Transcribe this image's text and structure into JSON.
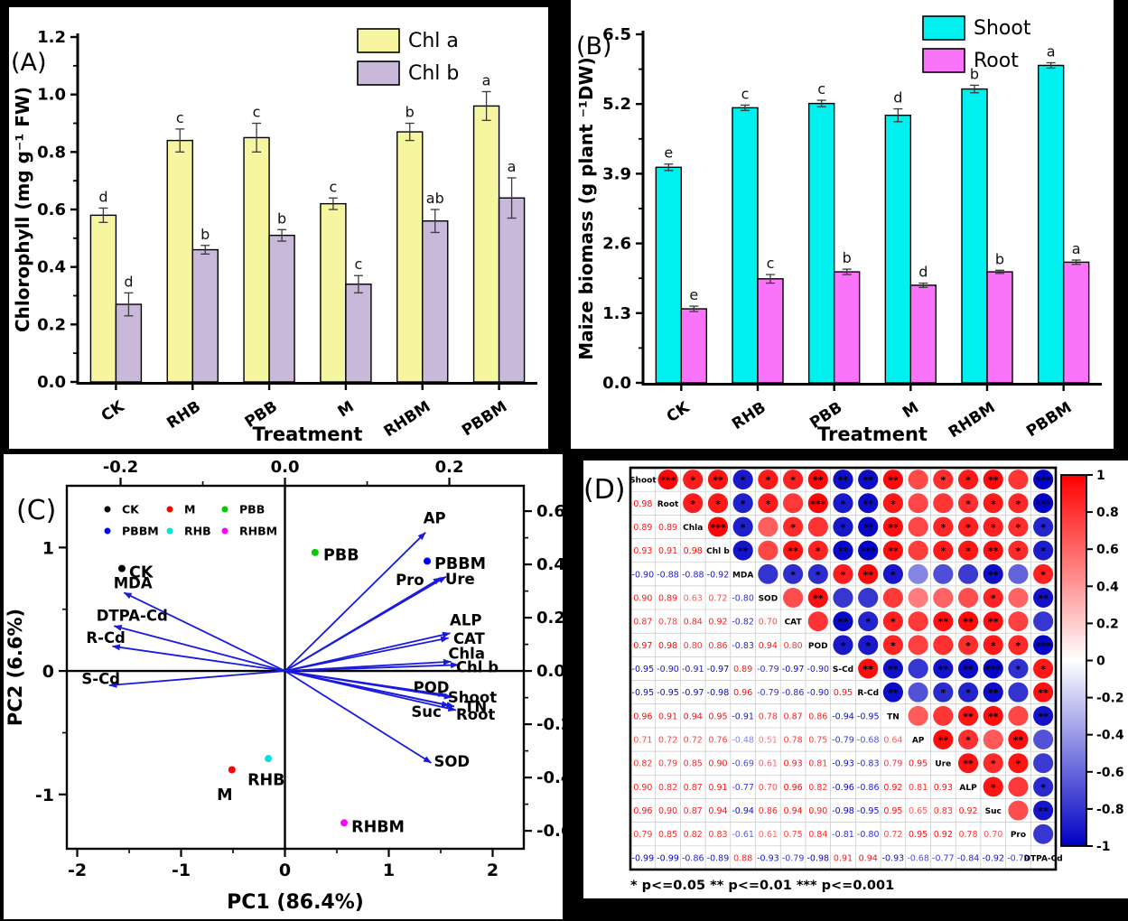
{
  "chart_data": [
    {
      "id": "panel_a",
      "type": "bar",
      "panel_label": "(A)",
      "title": "",
      "xlabel": "Treatment",
      "ylabel": "Chlorophyll (mg g⁻¹ FW)",
      "categories": [
        "CK",
        "RHB",
        "PBB",
        "M",
        "RHBM",
        "PBBM"
      ],
      "y_ticks": [
        "0.0",
        "0.2",
        "0.4",
        "0.6",
        "0.8",
        "1.0",
        "1.2"
      ],
      "ylim": [
        0,
        1.2
      ],
      "legend_position": "top-right",
      "series": [
        {
          "name": "Chl a",
          "color": "#F6F6A0",
          "values": [
            0.58,
            0.84,
            0.85,
            0.62,
            0.87,
            0.96
          ],
          "errors": [
            0.025,
            0.04,
            0.05,
            0.02,
            0.03,
            0.05
          ],
          "letters": [
            "d",
            "c",
            "c",
            "c",
            "b",
            "a"
          ]
        },
        {
          "name": "Chl b",
          "color": "#C9B8D9",
          "values": [
            0.27,
            0.46,
            0.51,
            0.34,
            0.56,
            0.64
          ],
          "errors": [
            0.04,
            0.015,
            0.02,
            0.03,
            0.04,
            0.07
          ],
          "letters": [
            "d",
            "b",
            "b",
            "c",
            "ab",
            "a"
          ]
        }
      ]
    },
    {
      "id": "panel_b",
      "type": "bar",
      "panel_label": "(B)",
      "title": "",
      "xlabel": "Treatment",
      "ylabel": "Maize biomass (g plant ⁻¹DW)",
      "categories": [
        "CK",
        "RHB",
        "PBB",
        "M",
        "RHBM",
        "PBBM"
      ],
      "y_ticks": [
        "0.0",
        "1.3",
        "2.6",
        "3.9",
        "5.2",
        "6.5"
      ],
      "ylim": [
        0,
        6.5
      ],
      "legend_position": "top-right",
      "series": [
        {
          "name": "Shoot",
          "color": "#00EFEF",
          "values": [
            4.02,
            5.13,
            5.21,
            4.99,
            5.48,
            5.92
          ],
          "errors": [
            0.06,
            0.05,
            0.06,
            0.12,
            0.07,
            0.05
          ],
          "letters": [
            "e",
            "c",
            "c",
            "d",
            "b",
            "a"
          ]
        },
        {
          "name": "Root",
          "color": "#FA74FA",
          "values": [
            1.38,
            1.94,
            2.07,
            1.82,
            2.07,
            2.25
          ],
          "errors": [
            0.05,
            0.08,
            0.05,
            0.04,
            0.03,
            0.04
          ],
          "letters": [
            "e",
            "c",
            "b",
            "d",
            "b",
            "a"
          ]
        }
      ]
    },
    {
      "id": "panel_c",
      "type": "scatter",
      "panel_label": "(C)",
      "xlabel": "PC1 (86.4%)",
      "ylabel": "PC2 (6.6%)",
      "x_range": [
        -2.1,
        2.3
      ],
      "y_range": [
        -1.44,
        1.5
      ],
      "x_ticks": [
        -2,
        -1,
        0,
        1,
        2
      ],
      "y_ticks": [
        -1,
        0,
        1
      ],
      "loading_x_range": [
        -0.2654,
        0.2906
      ],
      "loading_y_range": [
        -0.6674,
        0.6952
      ],
      "top_ticks": [
        "-0.2",
        "0.0",
        "0.2"
      ],
      "right_ticks": [
        "0.6",
        "0.4",
        "0.2",
        "0.0",
        "-0.2",
        "-0.4",
        "-0.6"
      ],
      "arrow_color": "#1A1ADF",
      "groups": [
        {
          "name": "CK",
          "color": "#000000",
          "x": -1.57,
          "y": 0.83,
          "lx": -1.5,
          "ly": 0.8,
          "anchor": "start"
        },
        {
          "name": "M",
          "color": "#FF0000",
          "x": -0.51,
          "y": -0.8,
          "lx": -0.58,
          "ly": -1.0,
          "anchor": "middle"
        },
        {
          "name": "PBB",
          "color": "#00CC00",
          "x": 0.29,
          "y": 0.96,
          "lx": 0.37,
          "ly": 0.94,
          "anchor": "start"
        },
        {
          "name": "PBBM",
          "color": "#0000FF",
          "x": 1.37,
          "y": 0.89,
          "lx": 1.44,
          "ly": 0.87,
          "anchor": "start"
        },
        {
          "name": "RHB",
          "color": "#00E0E0",
          "x": -0.16,
          "y": -0.71,
          "lx": -0.18,
          "ly": -0.88,
          "anchor": "middle"
        },
        {
          "name": "RHBM",
          "color": "#FF00FF",
          "x": 0.57,
          "y": -1.23,
          "lx": 0.64,
          "ly": -1.26,
          "anchor": "start"
        }
      ],
      "legend_rows": [
        [
          "CK",
          "M",
          "PBB"
        ],
        [
          "PBBM",
          "RHB",
          "RHBM"
        ]
      ],
      "loadings": [
        {
          "name": "AP",
          "x": 0.171,
          "y": 0.52,
          "lx": 0.182,
          "ly": 0.575,
          "anchor": "middle"
        },
        {
          "name": "Ure",
          "x": 0.196,
          "y": 0.354,
          "lx": 0.213,
          "ly": 0.346,
          "anchor": "middle"
        },
        {
          "name": "Pro",
          "x": 0.19,
          "y": 0.35,
          "lx": 0.152,
          "ly": 0.343,
          "anchor": "middle"
        },
        {
          "name": "ALP",
          "x": 0.201,
          "y": 0.142,
          "lx": 0.22,
          "ly": 0.192,
          "anchor": "middle"
        },
        {
          "name": "CAT",
          "x": 0.199,
          "y": 0.124,
          "lx": 0.224,
          "ly": 0.122,
          "anchor": "middle"
        },
        {
          "name": "Chla",
          "x": 0.202,
          "y": 0.035,
          "lx": 0.221,
          "ly": 0.066,
          "anchor": "middle"
        },
        {
          "name": "Chl b",
          "x": 0.211,
          "y": 0.023,
          "lx": 0.234,
          "ly": 0.016,
          "anchor": "middle"
        },
        {
          "name": "POD",
          "x": 0.196,
          "y": -0.09,
          "lx": 0.178,
          "ly": -0.06,
          "anchor": "middle"
        },
        {
          "name": "Shoot",
          "x": 0.203,
          "y": -0.099,
          "lx": 0.228,
          "ly": -0.098,
          "anchor": "middle"
        },
        {
          "name": "TN",
          "x": 0.206,
          "y": -0.133,
          "lx": 0.232,
          "ly": -0.133,
          "anchor": "middle"
        },
        {
          "name": "Root",
          "x": 0.208,
          "y": -0.147,
          "lx": 0.232,
          "ly": -0.163,
          "anchor": "middle"
        },
        {
          "name": "Suc",
          "x": 0.2,
          "y": -0.13,
          "lx": 0.172,
          "ly": -0.152,
          "anchor": "middle"
        },
        {
          "name": "SOD",
          "x": 0.178,
          "y": -0.345,
          "lx": 0.203,
          "ly": -0.338,
          "anchor": "middle"
        },
        {
          "name": "MDA",
          "x": -0.196,
          "y": 0.294,
          "lx": -0.185,
          "ly": 0.33,
          "anchor": "middle"
        },
        {
          "name": "DTPA-Cd",
          "x": -0.208,
          "y": 0.169,
          "lx": -0.186,
          "ly": 0.208,
          "anchor": "middle"
        },
        {
          "name": "R-Cd",
          "x": -0.21,
          "y": 0.093,
          "lx": -0.218,
          "ly": 0.126,
          "anchor": "middle"
        },
        {
          "name": "S-Cd",
          "x": -0.214,
          "y": -0.054,
          "lx": -0.224,
          "ly": -0.028,
          "anchor": "middle"
        }
      ]
    },
    {
      "id": "panel_d",
      "type": "heatmap",
      "panel_label": "(D)",
      "footnote": "* p<=0.05  ** p<=0.01  *** p<=0.001",
      "positive_color": "#FF0000",
      "negative_color": "#0000C4",
      "colorbar_ticks": [
        "1",
        "0.8",
        "0.6",
        "0.4",
        "0.2",
        "0",
        "-0.2",
        "-0.4",
        "-0.6",
        "-0.8",
        "-1"
      ],
      "variables": [
        "Shoot",
        "Root",
        "Chla",
        "Chl b",
        "MDA",
        "SOD",
        "CAT",
        "POD",
        "S-Cd",
        "R-Cd",
        "TN",
        "AP",
        "Ure",
        "ALP",
        "Suc",
        "Pro",
        "DTPA-Cd"
      ],
      "lower_triangle": [
        [],
        [
          0.98
        ],
        [
          0.89,
          0.89
        ],
        [
          0.93,
          0.91,
          0.98
        ],
        [
          -0.9,
          -0.88,
          -0.88,
          -0.92
        ],
        [
          0.9,
          0.89,
          0.63,
          0.72,
          -0.8
        ],
        [
          0.87,
          0.78,
          0.84,
          0.92,
          -0.82,
          0.7
        ],
        [
          0.97,
          0.98,
          0.8,
          0.86,
          -0.83,
          0.94,
          0.8
        ],
        [
          -0.95,
          -0.9,
          -0.91,
          -0.97,
          0.89,
          -0.79,
          -0.97,
          -0.9
        ],
        [
          -0.95,
          -0.95,
          -0.97,
          -0.98,
          0.96,
          -0.79,
          -0.86,
          -0.9,
          0.95
        ],
        [
          0.96,
          0.91,
          0.94,
          0.95,
          -0.91,
          0.78,
          0.87,
          0.86,
          -0.94,
          -0.95
        ],
        [
          0.71,
          0.72,
          0.72,
          0.76,
          -0.48,
          0.51,
          0.78,
          0.75,
          -0.79,
          -0.68,
          0.64
        ],
        [
          0.82,
          0.79,
          0.85,
          0.9,
          -0.69,
          0.61,
          0.93,
          0.81,
          -0.93,
          -0.83,
          0.79,
          0.95
        ],
        [
          0.9,
          0.82,
          0.87,
          0.91,
          -0.77,
          0.7,
          0.96,
          0.82,
          -0.96,
          -0.86,
          0.92,
          0.81,
          0.93
        ],
        [
          0.96,
          0.9,
          0.87,
          0.94,
          -0.94,
          0.86,
          0.94,
          0.9,
          -0.98,
          -0.95,
          0.95,
          0.65,
          0.83,
          0.92
        ],
        [
          0.79,
          0.85,
          0.82,
          0.83,
          -0.61,
          0.61,
          0.75,
          0.84,
          -0.81,
          -0.8,
          0.72,
          0.95,
          0.92,
          0.78,
          0.7
        ],
        [
          -0.99,
          -0.99,
          -0.86,
          -0.89,
          0.88,
          -0.93,
          -0.79,
          -0.98,
          0.91,
          0.94,
          -0.93,
          -0.68,
          -0.77,
          -0.84,
          -0.92,
          -0.79
        ]
      ],
      "stars_upper": [
        [
          "***",
          "*",
          "**",
          "*",
          "*",
          "*",
          "**",
          "**",
          "**",
          "**",
          "",
          "*",
          "*",
          "**",
          "",
          "***"
        ],
        [
          "*",
          "*",
          "*",
          "*",
          "",
          "***",
          "*",
          "**",
          "*",
          "",
          "",
          "*",
          "*",
          "*",
          "***"
        ],
        [
          "***",
          "*",
          "",
          "*",
          "",
          "*",
          "**",
          "**",
          "",
          "*",
          "*",
          "*",
          "*",
          "*"
        ],
        [
          "**",
          "",
          "**",
          "*",
          "**",
          "***",
          "**",
          "",
          "*",
          "*",
          "**",
          "*",
          "*"
        ],
        [
          "",
          "*",
          "*",
          "*",
          "**",
          "*",
          "",
          "",
          "",
          "**",
          "",
          "*"
        ],
        [
          "",
          "**",
          "",
          "",
          "",
          "",
          "",
          "",
          "*",
          "",
          "**"
        ],
        [
          "",
          "**",
          "*",
          "*",
          "",
          "**",
          "**",
          "**",
          "",
          ""
        ],
        [
          "*",
          "*",
          "*",
          "",
          "",
          "*",
          "*",
          "*",
          "***"
        ],
        [
          "**",
          "**",
          "",
          "**",
          "**",
          "***",
          "*",
          "*"
        ],
        [
          "**",
          "",
          "*",
          "*",
          "**",
          "",
          "**"
        ],
        [
          "",
          "",
          "**",
          "**",
          "",
          "**"
        ],
        [
          "**",
          "*",
          "",
          "**",
          ""
        ],
        [
          "**",
          "*",
          "*",
          ""
        ],
        [
          "*",
          "",
          "*"
        ],
        [
          "",
          "**"
        ],
        [
          ""
        ]
      ]
    }
  ]
}
